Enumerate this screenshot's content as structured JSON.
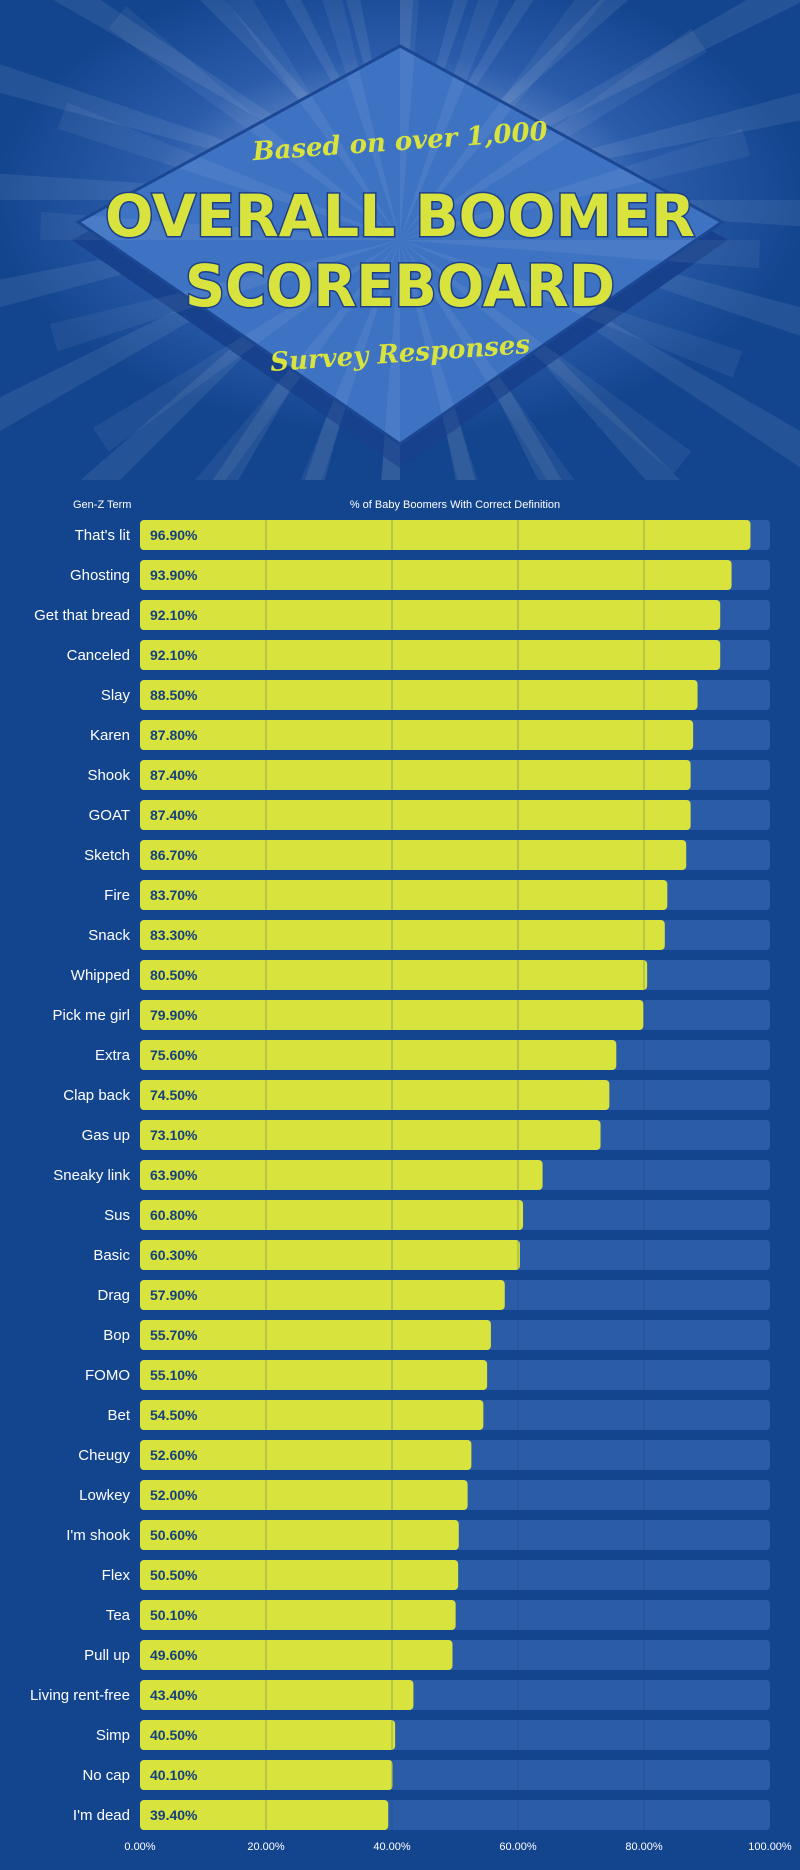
{
  "header": {
    "subtitle_top": "Based on over 1,000",
    "title_line1": "OVERALL BOOMER",
    "title_line2": "SCOREBOARD",
    "subtitle_bottom": "Survey Responses"
  },
  "colors": {
    "background": "#13458f",
    "bar_fill": "#d9e33d",
    "bar_track": "#2b5ca7",
    "value_text": "#15407f"
  },
  "chart_data": {
    "type": "bar",
    "orientation": "horizontal",
    "xlabel": "% of Baby Boomers With Correct Definition",
    "ylabel": "Gen-Z Term",
    "xlim": [
      0,
      100
    ],
    "ticks": [
      "0.00%",
      "20.00%",
      "40.00%",
      "60.00%",
      "80.00%",
      "100.00%"
    ],
    "grid": true,
    "categories": [
      "That's lit",
      "Ghosting",
      "Get that bread",
      "Canceled",
      "Slay",
      "Karen",
      "Shook",
      "GOAT",
      "Sketch",
      "Fire",
      "Snack",
      "Whipped",
      "Pick me girl",
      "Extra",
      "Clap back",
      "Gas up",
      "Sneaky link",
      "Sus",
      "Basic",
      "Drag",
      "Bop",
      "FOMO",
      "Bet",
      "Cheugy",
      "Lowkey",
      "I'm shook",
      "Flex",
      "Tea",
      "Pull up",
      "Living rent-free",
      "Simp",
      "No cap",
      "I'm dead"
    ],
    "values": [
      96.9,
      93.9,
      92.1,
      92.1,
      88.5,
      87.8,
      87.4,
      87.4,
      86.7,
      83.7,
      83.3,
      80.5,
      79.9,
      75.6,
      74.5,
      73.1,
      63.9,
      60.8,
      60.3,
      57.9,
      55.7,
      55.1,
      54.5,
      52.6,
      52.0,
      50.6,
      50.5,
      50.1,
      49.6,
      43.4,
      40.5,
      40.1,
      39.4
    ],
    "value_labels": [
      "96.90%",
      "93.90%",
      "92.10%",
      "92.10%",
      "88.50%",
      "87.80%",
      "87.40%",
      "87.40%",
      "86.70%",
      "83.70%",
      "83.30%",
      "80.50%",
      "79.90%",
      "75.60%",
      "74.50%",
      "73.10%",
      "63.90%",
      "60.80%",
      "60.30%",
      "57.90%",
      "55.70%",
      "55.10%",
      "54.50%",
      "52.60%",
      "52.00%",
      "50.60%",
      "50.50%",
      "50.10%",
      "49.60%",
      "43.40%",
      "40.50%",
      "40.10%",
      "39.40%"
    ]
  }
}
